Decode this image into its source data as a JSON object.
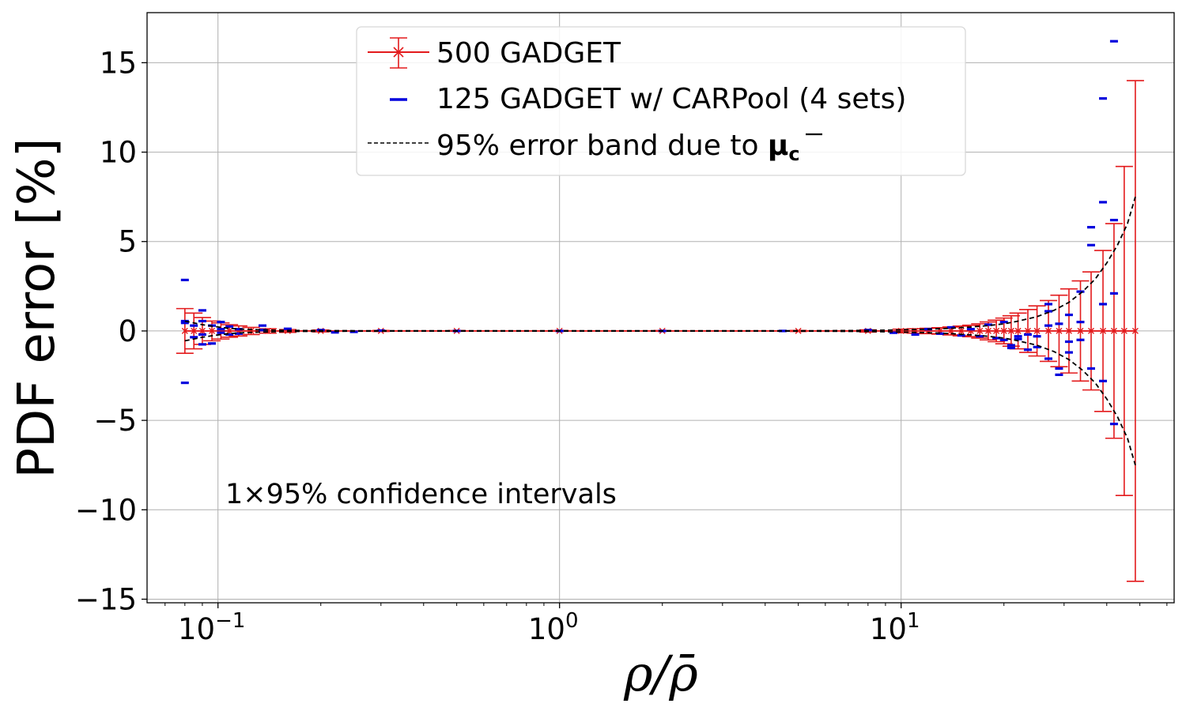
{
  "chart_data": {
    "type": "errorbar",
    "xscale": "log",
    "xlim": [
      0.062,
      63
    ],
    "ylim": [
      -15.2,
      17.8
    ],
    "xlabel": "ρ/ρ̄",
    "ylabel": "PDF error  [%]",
    "grid": true,
    "legend_position": "top-center",
    "yticks": [
      {
        "value": 15,
        "label": "15"
      },
      {
        "value": 10,
        "label": "10"
      },
      {
        "value": 5,
        "label": "5"
      },
      {
        "value": 0,
        "label": "0"
      },
      {
        "value": -5,
        "label": "−5"
      },
      {
        "value": -10,
        "label": "−10"
      },
      {
        "value": -15,
        "label": "−15"
      }
    ],
    "xticks": [
      {
        "value": 0.1,
        "base": "10",
        "exp": "−1"
      },
      {
        "value": 1,
        "base": "10",
        "exp": "0"
      },
      {
        "value": 10,
        "base": "10",
        "exp": "1"
      }
    ],
    "legend": [
      {
        "series": "500_gadget",
        "label": "500  GADGET"
      },
      {
        "series": "125_carpool",
        "label": "125  GADGET w/ CARPool (4 sets)"
      },
      {
        "series": "error_band",
        "label_prefix": "95%  error band due to ",
        "label_symbol": "μ",
        "label_sub": "c"
      }
    ],
    "annotation": "1×95% confidence intervals",
    "series": [
      {
        "name": "500  GADGET",
        "key": "500_gadget",
        "color": "#e31a1c",
        "marker": "x",
        "x": [
          0.08,
          0.085,
          0.09,
          0.096,
          0.102,
          0.108,
          0.115,
          0.125,
          0.14,
          0.16,
          0.2,
          0.3,
          0.5,
          1,
          2,
          5,
          8,
          10,
          11,
          12,
          13,
          14,
          15,
          16,
          17,
          18,
          19,
          20,
          21,
          22,
          23.5,
          25,
          27,
          29,
          31,
          33.5,
          36,
          39,
          42,
          45,
          48.5
        ],
        "y": [
          0,
          0,
          0,
          0,
          0,
          0,
          0,
          0,
          0,
          0,
          0,
          0,
          0,
          0,
          0,
          0,
          0,
          0,
          0,
          0,
          0,
          0,
          0,
          0,
          0,
          0,
          0,
          0,
          0,
          0,
          0,
          0,
          0,
          0,
          0,
          0,
          0,
          0,
          0,
          0,
          0
        ],
        "err": [
          1.25,
          1.0,
          0.75,
          0.55,
          0.45,
          0.35,
          0.28,
          0.2,
          0.12,
          0.08,
          0.05,
          0.03,
          0.02,
          0.02,
          0.02,
          0.03,
          0.06,
          0.1,
          0.12,
          0.15,
          0.18,
          0.22,
          0.27,
          0.32,
          0.4,
          0.5,
          0.6,
          0.72,
          0.85,
          1.0,
          1.2,
          1.4,
          1.7,
          2.0,
          2.35,
          2.8,
          3.3,
          4.5,
          6.0,
          9.2,
          14.0
        ]
      },
      {
        "name": "125  GADGET w/ CARPool (4 sets)",
        "key": "125_carpool",
        "color": "#0000dd",
        "marker": "_",
        "points": [
          [
            0.08,
            2.85
          ],
          [
            0.08,
            0.55
          ],
          [
            0.08,
            0.45
          ],
          [
            0.08,
            -2.9
          ],
          [
            0.085,
            0.3
          ],
          [
            0.085,
            -0.35
          ],
          [
            0.09,
            1.15
          ],
          [
            0.09,
            0.55
          ],
          [
            0.09,
            -0.2
          ],
          [
            0.09,
            -0.75
          ],
          [
            0.096,
            0.3
          ],
          [
            0.096,
            -0.7
          ],
          [
            0.102,
            0.5
          ],
          [
            0.102,
            0.1
          ],
          [
            0.102,
            -0.1
          ],
          [
            0.108,
            0.25
          ],
          [
            0.108,
            -0.2
          ],
          [
            0.115,
            0.1
          ],
          [
            0.115,
            -0.15
          ],
          [
            0.135,
            0.3
          ],
          [
            0.135,
            0.05
          ],
          [
            0.16,
            0.12
          ],
          [
            0.2,
            0.05
          ],
          [
            0.22,
            -0.08
          ],
          [
            0.25,
            -0.05
          ],
          [
            0.3,
            0.02
          ],
          [
            0.5,
            0.0
          ],
          [
            1.0,
            0.0
          ],
          [
            2.0,
            0.0
          ],
          [
            4.5,
            0.0
          ],
          [
            8.0,
            0.05
          ],
          [
            9.5,
            -0.1
          ],
          [
            11.0,
            -0.2
          ],
          [
            12.0,
            0.1
          ],
          [
            13.0,
            -0.15
          ],
          [
            14.0,
            0.2
          ],
          [
            15.0,
            -0.25
          ],
          [
            16.0,
            0.1
          ],
          [
            17.0,
            -0.3
          ],
          [
            18.0,
            0.35
          ],
          [
            19.0,
            -0.4
          ],
          [
            20.0,
            0.5
          ],
          [
            20.0,
            -0.5
          ],
          [
            21.0,
            -0.8
          ],
          [
            21.0,
            -0.95
          ],
          [
            22.0,
            -0.3
          ],
          [
            22.0,
            -0.45
          ],
          [
            23.5,
            -0.2
          ],
          [
            23.5,
            -1.05
          ],
          [
            25.0,
            -0.3
          ],
          [
            25.0,
            -0.9
          ],
          [
            27.0,
            1.5
          ],
          [
            27.0,
            1.1
          ],
          [
            27.0,
            0.3
          ],
          [
            27.0,
            -1.55
          ],
          [
            29.0,
            0.4
          ],
          [
            29.0,
            -2.1
          ],
          [
            29.0,
            -2.45
          ],
          [
            31.0,
            0.9
          ],
          [
            31.0,
            -0.6
          ],
          [
            31.0,
            -1.2
          ],
          [
            33.5,
            2.2
          ],
          [
            33.5,
            0.5
          ],
          [
            33.5,
            -0.5
          ],
          [
            36.0,
            5.8
          ],
          [
            36.0,
            4.8
          ],
          [
            36.0,
            -2.1
          ],
          [
            39.0,
            13.0
          ],
          [
            39.0,
            7.2
          ],
          [
            39.0,
            1.5
          ],
          [
            39.0,
            -2.8
          ],
          [
            42.0,
            16.2
          ],
          [
            42.0,
            6.2
          ],
          [
            42.0,
            2.1
          ],
          [
            42.0,
            -5.2
          ]
        ]
      },
      {
        "name": "95%  error band due to μc",
        "key": "error_band",
        "color": "#000000",
        "style": "dashed",
        "x": [
          0.08,
          0.085,
          0.09,
          0.096,
          0.102,
          0.108,
          0.115,
          0.125,
          0.14,
          0.16,
          0.2,
          0.3,
          0.5,
          1,
          2,
          5,
          8,
          10,
          12,
          14,
          16,
          18,
          20,
          22,
          25,
          28,
          31,
          34,
          37,
          40,
          43,
          46,
          48.5
        ],
        "upper": [
          0.55,
          0.45,
          0.35,
          0.27,
          0.2,
          0.15,
          0.11,
          0.08,
          0.05,
          0.03,
          0.02,
          0.01,
          0.01,
          0.01,
          0.01,
          0.01,
          0.03,
          0.06,
          0.1,
          0.15,
          0.22,
          0.3,
          0.4,
          0.55,
          0.8,
          1.15,
          1.6,
          2.2,
          2.9,
          3.8,
          4.8,
          6.0,
          7.5
        ],
        "lower": [
          -0.55,
          -0.45,
          -0.35,
          -0.27,
          -0.2,
          -0.15,
          -0.11,
          -0.08,
          -0.05,
          -0.03,
          -0.02,
          -0.01,
          -0.01,
          -0.01,
          -0.01,
          -0.01,
          -0.03,
          -0.06,
          -0.1,
          -0.15,
          -0.22,
          -0.3,
          -0.4,
          -0.55,
          -0.8,
          -1.15,
          -1.6,
          -2.2,
          -2.9,
          -3.8,
          -4.8,
          -6.0,
          -7.5
        ]
      }
    ]
  }
}
